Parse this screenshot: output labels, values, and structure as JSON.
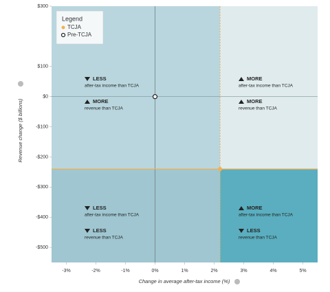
{
  "chart_data": {
    "type": "scatter",
    "xlabel": "Change in average after-tax income (%)",
    "ylabel": "Revenue change ($ billions)",
    "xlim": [
      -3.5,
      5.5
    ],
    "ylim": [
      -550,
      300
    ],
    "xticks": [
      {
        "value": -3,
        "label": "-3%"
      },
      {
        "value": -2,
        "label": "-2%"
      },
      {
        "value": -1,
        "label": "-1%"
      },
      {
        "value": 0,
        "label": "0%"
      },
      {
        "value": 1,
        "label": "1%"
      },
      {
        "value": 2,
        "label": "2%"
      },
      {
        "value": 3,
        "label": "3%"
      },
      {
        "value": 4,
        "label": "4%"
      },
      {
        "value": 5,
        "label": "5%"
      }
    ],
    "yticks": [
      {
        "value": 300,
        "label": "$300"
      },
      {
        "value": 100,
        "label": "$100"
      },
      {
        "value": 0,
        "label": "$0"
      },
      {
        "value": -100,
        "label": "-$100"
      },
      {
        "value": -200,
        "label": "-$200"
      },
      {
        "value": -300,
        "label": "-$300"
      },
      {
        "value": -400,
        "label": "-$400"
      },
      {
        "value": -500,
        "label": "-$500"
      }
    ],
    "legend": {
      "title": "Legend",
      "position": "upper left"
    },
    "series": [
      {
        "name": "TCJA",
        "color": "#f4b04f",
        "x": [
          2.2
        ],
        "values": [
          -240
        ]
      },
      {
        "name": "Pre-TCJA",
        "color": "#ffffff",
        "x": [
          0
        ],
        "values": [
          0
        ]
      }
    ],
    "quadrants": [
      {
        "items": [
          [
            "LESS",
            "after-tax income than TCJA"
          ],
          [
            "MORE",
            "revenue than TCJA"
          ]
        ]
      },
      {
        "items": [
          [
            "MORE",
            "after-tax income than TCJA"
          ],
          [
            "MORE",
            "revenue than TCJA"
          ]
        ]
      },
      {
        "items": [
          [
            "LESS",
            "after-tax income than TCJA"
          ],
          [
            "LESS",
            "revenue than TCJA"
          ]
        ]
      },
      {
        "items": [
          [
            "MORE",
            "after-tax income than TCJA"
          ],
          [
            "LESS",
            "revenue than TCJA"
          ]
        ]
      }
    ]
  }
}
